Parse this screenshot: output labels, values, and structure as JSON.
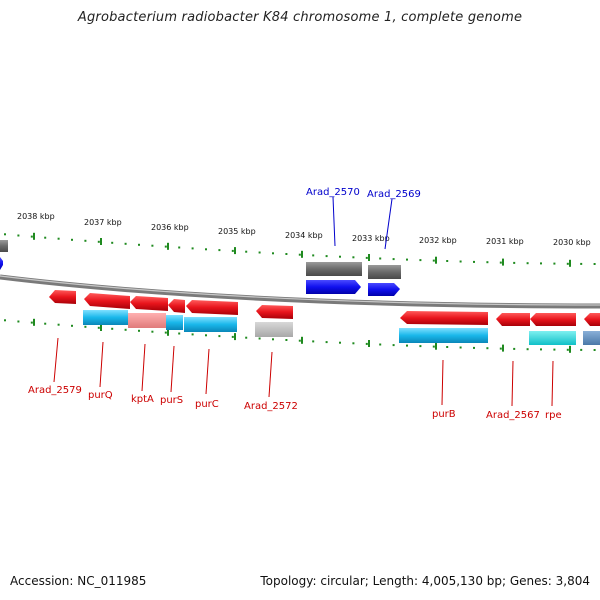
{
  "title": "Agrobacterium radiobacter K84 chromosome 1, complete genome",
  "footer": {
    "accession": "Accession: NC_011985",
    "summary": "Topology: circular; Length: 4,005,130 bp; Genes: 3,804"
  },
  "colors": {
    "backbone": "#7a7a7a",
    "tick": "#1f8a1f",
    "cds_red": "#e8141c",
    "cds_blue": "#1010ee",
    "rna_gray": "#6a6a6a",
    "label_red": "#cc0000",
    "label_blue": "#0000cc"
  },
  "kbp_labels": [
    "2038 kbp",
    "2037 kbp",
    "2036 kbp",
    "2035 kbp",
    "2034 kbp",
    "2033 kbp",
    "2032 kbp",
    "2031 kbp",
    "2030 kbp"
  ],
  "gene_labels": [
    {
      "text": "Arad_2570",
      "color": "blue"
    },
    {
      "text": "Arad_2569",
      "color": "blue"
    },
    {
      "text": "Arad_2579",
      "color": "red"
    },
    {
      "text": "purQ",
      "color": "red"
    },
    {
      "text": "kptA",
      "color": "red"
    },
    {
      "text": "purS",
      "color": "red"
    },
    {
      "text": "purC",
      "color": "red"
    },
    {
      "text": "Arad_2572",
      "color": "red"
    },
    {
      "text": "purB",
      "color": "red"
    },
    {
      "text": "Arad_2567",
      "color": "red"
    },
    {
      "text": "rpe",
      "color": "red"
    }
  ]
}
